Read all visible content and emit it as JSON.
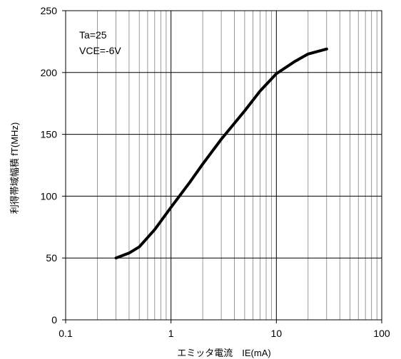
{
  "chart_data": {
    "type": "line",
    "x_scale": "log",
    "xlim": [
      0.1,
      100
    ],
    "ylim": [
      0,
      250
    ],
    "x_ticks": [
      0.1,
      1,
      10,
      100
    ],
    "x_tick_labels": [
      "0.1",
      "1",
      "10",
      "100"
    ],
    "y_ticks": [
      0,
      50,
      100,
      150,
      200,
      250
    ],
    "y_tick_labels": [
      "0",
      "50",
      "100",
      "150",
      "200",
      "250"
    ],
    "xlabel": "エミッタ電流　IE(mA)",
    "ylabel": "利得帯域幅積 fT(MHz)",
    "grid": true,
    "annotations": [
      "Ta=25",
      "VCE=-6V"
    ],
    "series": [
      {
        "x": [
          0.3,
          0.4,
          0.5,
          0.7,
          1.0,
          1.5,
          2.0,
          3.0,
          5.0,
          7.0,
          10.0,
          15.0,
          20.0,
          30.0
        ],
        "y": [
          50,
          54,
          59,
          73,
          91,
          111,
          126,
          146,
          169,
          185,
          199,
          209,
          215,
          219
        ]
      }
    ]
  },
  "colors": {
    "line": "#000000",
    "grid": "#808080",
    "frame": "#000000"
  }
}
